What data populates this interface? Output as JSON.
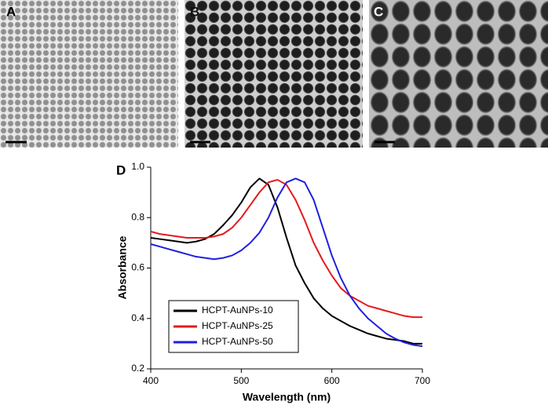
{
  "panels": [
    {
      "label": "A"
    },
    {
      "label": "B"
    },
    {
      "label": "C"
    }
  ],
  "chart_data": {
    "type": "line",
    "label": "D",
    "x_label": "Wavelength (nm)",
    "y_label": "Absorbance",
    "x": [
      400,
      410,
      420,
      430,
      440,
      450,
      460,
      470,
      480,
      490,
      500,
      510,
      520,
      530,
      540,
      550,
      560,
      570,
      580,
      590,
      600,
      610,
      620,
      630,
      640,
      650,
      660,
      670,
      680,
      690,
      700
    ],
    "series": [
      {
        "name": "HCPT-AuNPs-10",
        "color": "#000000",
        "values": [
          0.72,
          0.715,
          0.71,
          0.705,
          0.7,
          0.705,
          0.715,
          0.735,
          0.77,
          0.81,
          0.86,
          0.92,
          0.955,
          0.93,
          0.84,
          0.72,
          0.61,
          0.54,
          0.48,
          0.44,
          0.41,
          0.39,
          0.37,
          0.355,
          0.34,
          0.33,
          0.32,
          0.315,
          0.31,
          0.3,
          0.3
        ]
      },
      {
        "name": "HCPT-AuNPs-25",
        "color": "#e41a1c",
        "values": [
          0.745,
          0.735,
          0.73,
          0.725,
          0.72,
          0.72,
          0.72,
          0.725,
          0.735,
          0.76,
          0.8,
          0.85,
          0.9,
          0.94,
          0.95,
          0.93,
          0.87,
          0.79,
          0.7,
          0.63,
          0.57,
          0.52,
          0.49,
          0.47,
          0.45,
          0.44,
          0.43,
          0.42,
          0.41,
          0.405,
          0.405
        ]
      },
      {
        "name": "HCPT-AuNPs-50",
        "color": "#1f1fe0",
        "values": [
          0.695,
          0.685,
          0.675,
          0.665,
          0.655,
          0.645,
          0.64,
          0.635,
          0.64,
          0.65,
          0.67,
          0.7,
          0.74,
          0.8,
          0.88,
          0.94,
          0.955,
          0.94,
          0.87,
          0.76,
          0.65,
          0.56,
          0.49,
          0.44,
          0.4,
          0.37,
          0.34,
          0.32,
          0.305,
          0.295,
          0.29
        ]
      }
    ],
    "xlim": [
      400,
      700
    ],
    "xticks": [
      400,
      500,
      600,
      700
    ],
    "ylim": [
      0.2,
      1.0
    ],
    "yticks": [
      0.2,
      0.4,
      0.6,
      0.8,
      {
        "value": 1,
        "label": "1.0"
      }
    ],
    "grid": false,
    "legend": "lower left"
  }
}
